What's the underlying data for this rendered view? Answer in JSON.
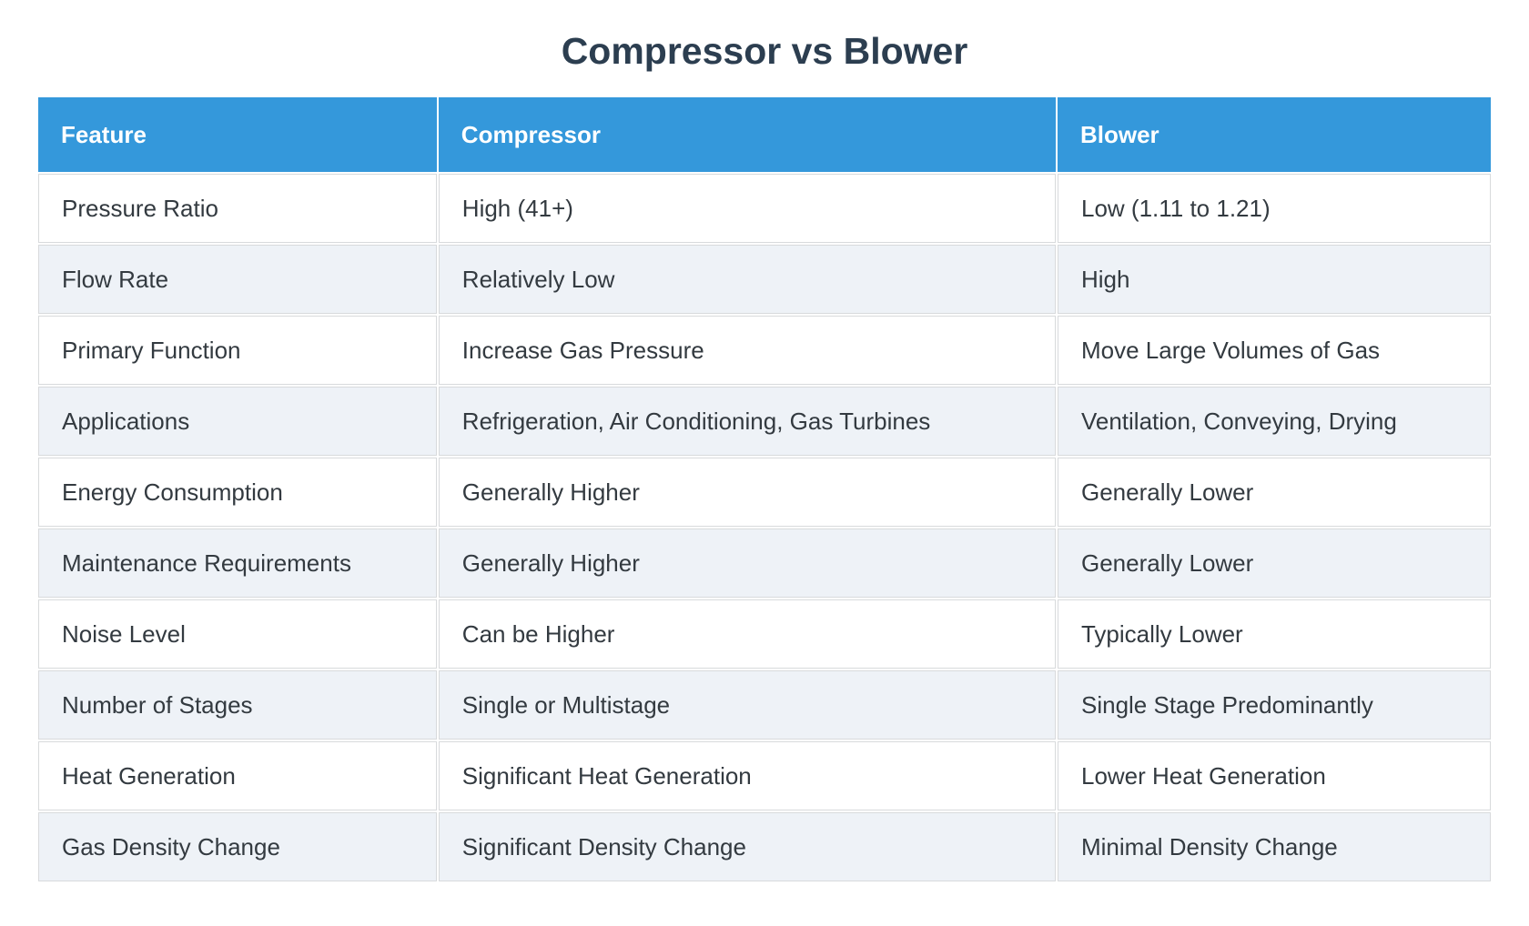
{
  "chart_data": {
    "type": "table",
    "title": "Compressor vs Blower",
    "columns": [
      "Feature",
      "Compressor",
      "Blower"
    ],
    "rows": [
      [
        "Pressure Ratio",
        "High (41+)",
        "Low (1.11 to 1.21)"
      ],
      [
        "Flow Rate",
        "Relatively Low",
        "High"
      ],
      [
        "Primary Function",
        "Increase Gas Pressure",
        "Move Large Volumes of Gas"
      ],
      [
        "Applications",
        "Refrigeration, Air Conditioning, Gas Turbines",
        "Ventilation, Conveying, Drying"
      ],
      [
        "Energy Consumption",
        "Generally Higher",
        "Generally Lower"
      ],
      [
        "Maintenance Requirements",
        "Generally Higher",
        "Generally Lower"
      ],
      [
        "Noise Level",
        "Can be Higher",
        "Typically Lower"
      ],
      [
        "Number of Stages",
        "Single or Multistage",
        "Single Stage Predominantly"
      ],
      [
        "Heat Generation",
        "Significant Heat Generation",
        "Lower Heat Generation"
      ],
      [
        "Gas Density Change",
        "Significant Density Change",
        "Minimal Density Change"
      ]
    ],
    "layout": {
      "legend": "none",
      "grid": "cell-borders",
      "header_position": "top",
      "alternating_rows": true
    }
  },
  "colors": {
    "header_background": "#3498db",
    "header_text": "#ffffff",
    "row_background": "#ffffff",
    "row_alternate_background": "#eef2f7",
    "cell_border": "#d8dadc",
    "title_text": "#2c3e50",
    "cell_text": "#333a40",
    "page_background": "#ffffff"
  }
}
